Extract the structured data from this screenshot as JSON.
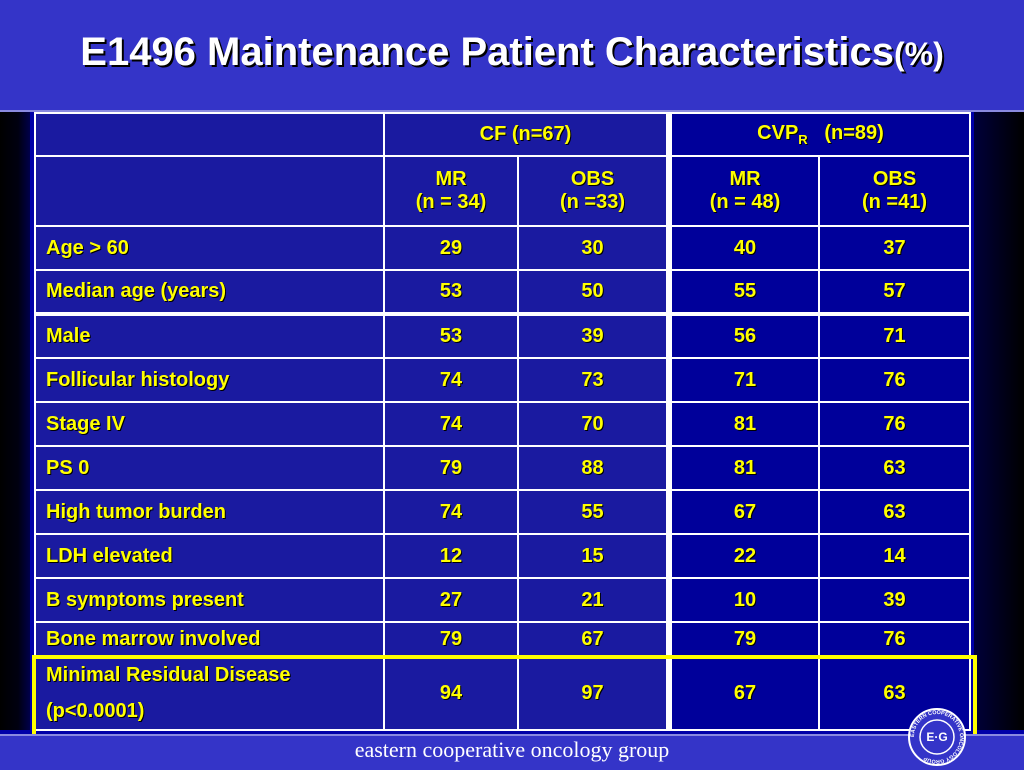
{
  "title": {
    "main": "E1496 Maintenance Patient Characteristics",
    "suffix": "(%)"
  },
  "table": {
    "group_cf": "CF   (n=67)",
    "group_cvp_prefix": "CVP",
    "group_cvp_sub": "R",
    "group_cvp_suffix": "   (n=89)",
    "subheaders": [
      {
        "label": "MR",
        "n": "(n = 34)"
      },
      {
        "label": "OBS",
        "n": "(n =33)"
      },
      {
        "label": "MR",
        "n": "(n = 48)"
      },
      {
        "label": "OBS",
        "n": "(n =41)"
      }
    ],
    "rows": [
      {
        "label": "Age > 60",
        "values": [
          "29",
          "30",
          "40",
          "37"
        ]
      },
      {
        "label": "Median age (years)",
        "values": [
          "53",
          "50",
          "55",
          "57"
        ]
      },
      {
        "label": "Male",
        "values": [
          "53",
          "39",
          "56",
          "71"
        ]
      },
      {
        "label": "Follicular histology",
        "values": [
          "74",
          "73",
          "71",
          "76"
        ]
      },
      {
        "label": "Stage IV",
        "values": [
          "74",
          "70",
          "81",
          "76"
        ]
      },
      {
        "label": "PS 0",
        "values": [
          "79",
          "88",
          "81",
          "63"
        ]
      },
      {
        "label": "High tumor burden",
        "values": [
          "74",
          "55",
          "67",
          "63"
        ]
      },
      {
        "label": "LDH elevated",
        "values": [
          "12",
          "15",
          "22",
          "14"
        ]
      },
      {
        "label": "B symptoms present",
        "values": [
          "27",
          "21",
          "10",
          "39"
        ]
      },
      {
        "label": "Bone marrow involved",
        "values": [
          "79",
          "67",
          "79",
          "76"
        ]
      }
    ],
    "highlight_row": {
      "label_line1": "Minimal Residual Disease",
      "label_line2": "(p<0.0001)",
      "values": [
        "94",
        "97",
        "67",
        "63"
      ]
    }
  },
  "footer": {
    "text": "eastern cooperative oncology group",
    "logo_text": "EASTERN COOPERATIVE ONCOLOGY GROUP",
    "logo_mark": "E·G"
  },
  "colors": {
    "background": "#0000a8",
    "band": "#3434c8",
    "text_yellow": "#ffff00",
    "highlight_border": "#ffff00"
  }
}
